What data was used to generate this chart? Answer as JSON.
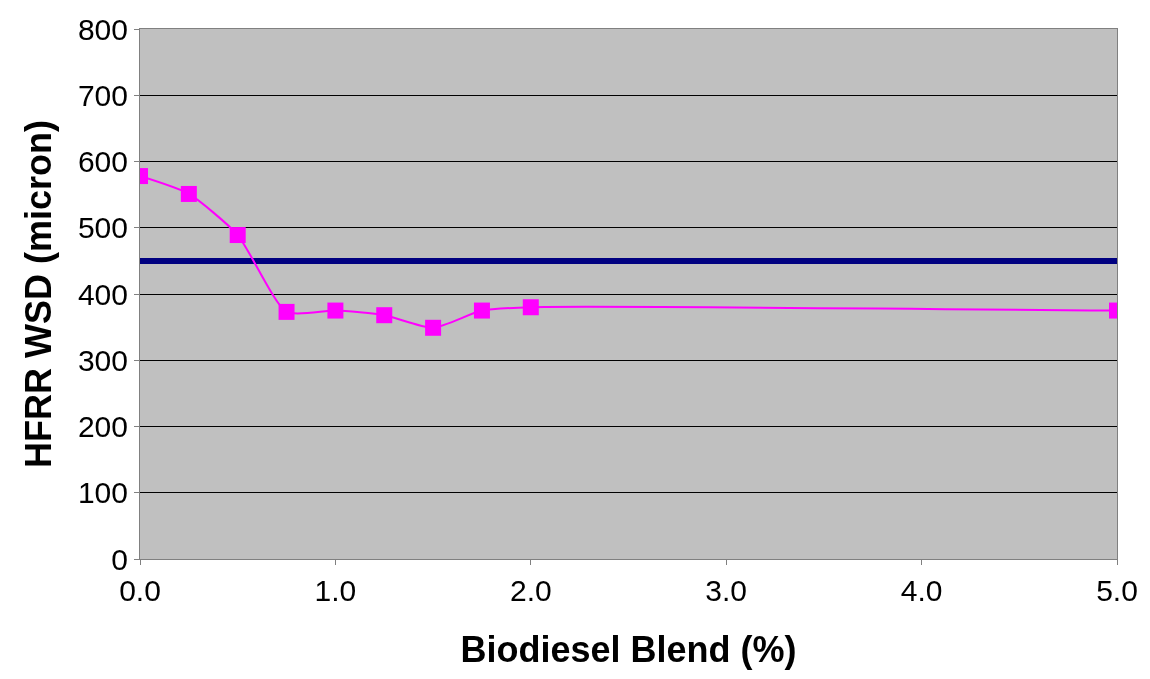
{
  "chart_data": {
    "type": "line",
    "xlabel": "Biodiesel Blend (%)",
    "ylabel": "HFRR WSD (micron)",
    "x": [
      0,
      0.25,
      0.5,
      0.75,
      1.0,
      1.25,
      1.5,
      1.75,
      2.0,
      5.0
    ],
    "series": [
      {
        "color": "#ff00ff",
        "values": [
          578,
          551,
          489,
          373,
          375,
          368,
          349,
          375,
          380,
          375
        ]
      }
    ],
    "xlim": [
      0,
      5
    ],
    "xticks": [
      {
        "value": 0,
        "label": "0.0"
      },
      {
        "value": 1,
        "label": "1.0"
      },
      {
        "value": 2,
        "label": "2.0"
      },
      {
        "value": 3,
        "label": "3.0"
      },
      {
        "value": 4,
        "label": "4.0"
      },
      {
        "value": 5,
        "label": "5.0"
      }
    ],
    "ylim": [
      0,
      800
    ],
    "yticks": [
      0,
      100,
      200,
      300,
      400,
      500,
      600,
      700,
      800
    ],
    "ref_lines": [
      {
        "axis": "y",
        "value": 450,
        "color": "#000080"
      }
    ],
    "grid": "y",
    "marker": "square",
    "line_style": "solid",
    "legend": false
  }
}
